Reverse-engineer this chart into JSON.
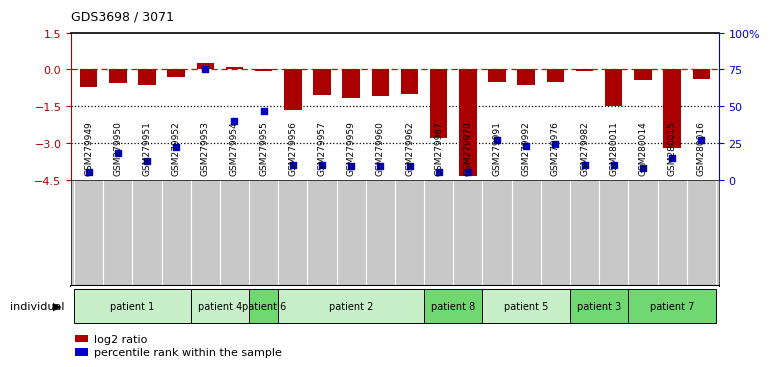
{
  "title": "GDS3698 / 3071",
  "samples": [
    "GSM279949",
    "GSM279950",
    "GSM279951",
    "GSM279952",
    "GSM279953",
    "GSM279954",
    "GSM279955",
    "GSM279956",
    "GSM279957",
    "GSM279959",
    "GSM279960",
    "GSM279962",
    "GSM279967",
    "GSM279970",
    "GSM279991",
    "GSM279992",
    "GSM279976",
    "GSM279982",
    "GSM280011",
    "GSM280014",
    "GSM280015",
    "GSM280016"
  ],
  "log2_ratio": [
    -0.7,
    -0.55,
    -0.65,
    -0.3,
    0.25,
    0.1,
    -0.05,
    -1.65,
    -1.05,
    -1.15,
    -1.1,
    -1.0,
    -2.8,
    -4.35,
    -0.5,
    -0.65,
    -0.5,
    -0.05,
    -1.5,
    -0.45,
    -3.2,
    -0.4
  ],
  "percentile": [
    5,
    18,
    13,
    22,
    75,
    40,
    47,
    10,
    10,
    9,
    9,
    9,
    5,
    5,
    27,
    23,
    24,
    10,
    10,
    8,
    15,
    27
  ],
  "patients": [
    {
      "label": "patient 1",
      "start": 0,
      "end": 4,
      "color": "#c8f0c8"
    },
    {
      "label": "patient 4",
      "start": 4,
      "end": 6,
      "color": "#c8f0c8"
    },
    {
      "label": "patient 6",
      "start": 6,
      "end": 7,
      "color": "#70d870"
    },
    {
      "label": "patient 2",
      "start": 7,
      "end": 12,
      "color": "#c8f0c8"
    },
    {
      "label": "patient 8",
      "start": 12,
      "end": 14,
      "color": "#70d870"
    },
    {
      "label": "patient 5",
      "start": 14,
      "end": 17,
      "color": "#c8f0c8"
    },
    {
      "label": "patient 3",
      "start": 17,
      "end": 19,
      "color": "#70d870"
    },
    {
      "label": "patient 7",
      "start": 19,
      "end": 22,
      "color": "#70d870"
    }
  ],
  "ylim_left": [
    -4.5,
    1.5
  ],
  "ylim_right": [
    0,
    100
  ],
  "yticks_left": [
    1.5,
    0,
    -1.5,
    -3,
    -4.5
  ],
  "yticks_right": [
    100,
    75,
    50,
    25,
    0
  ],
  "bar_color": "#aa0000",
  "dot_color": "#0000cc",
  "bg_color": "#ffffff",
  "label_bg": "#c8c8c8",
  "dashed_line_color": "#cc0000",
  "legend_log2": "log2 ratio",
  "legend_pct": "percentile rank within the sample"
}
